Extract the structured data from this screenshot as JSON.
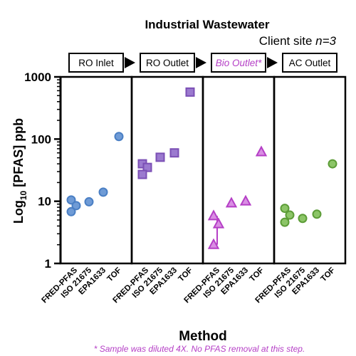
{
  "chart_data": {
    "type": "scatter",
    "title": "Industrial Wastewater",
    "subtitle_prefix": "Client site ",
    "subtitle_n": "n=3",
    "xlabel": "Method",
    "ylabel_prefix": "Log",
    "ylabel_sub": "10",
    "ylabel_suffix": " [PFAS] ppb",
    "y_scale": "log",
    "ylim": [
      1,
      1000
    ],
    "y_ticks": [
      1,
      10,
      100,
      1000
    ],
    "y_tick_labels": [
      "1",
      "10",
      "100",
      "1000"
    ],
    "grid": false,
    "categories": [
      "FRED-PFAS",
      "ISO 21675",
      "EPA1633",
      "TOF"
    ],
    "footnote": "* Sample was diluted 4X. No PFAS removal at this step.",
    "panels": [
      {
        "name": "RO Inlet",
        "italic": false,
        "color": "#4a7fc4",
        "fill": "#6f9bd6",
        "marker": "circle",
        "points": {
          "FRED-PFAS": [
            10.5,
            8.5,
            6.8
          ],
          "ISO 21675": [
            9.8
          ],
          "EPA1633": [
            14
          ],
          "TOF": [
            110
          ]
        }
      },
      {
        "name": "RO Outlet",
        "italic": false,
        "color": "#7b4fb5",
        "fill": "#9b7acf",
        "marker": "square",
        "points": {
          "FRED-PFAS": [
            40,
            35,
            27
          ],
          "ISO 21675": [
            51
          ],
          "EPA1633": [
            60
          ],
          "TOF": [
            570
          ]
        }
      },
      {
        "name": "Bio Outlet*",
        "italic": true,
        "color": "#b53fc6",
        "fill": "#d98ee3",
        "marker": "triangle",
        "points": {
          "FRED-PFAS": [
            5.8,
            4.3,
            2.0
          ],
          "ISO 21675": [
            9.3
          ],
          "EPA1633": [
            10
          ],
          "TOF": [
            62
          ]
        }
      },
      {
        "name": "AC Outlet",
        "italic": false,
        "color": "#5c9c37",
        "fill": "#8cc567",
        "marker": "circle",
        "points": {
          "FRED-PFAS": [
            7.7,
            6.0,
            4.6
          ],
          "ISO 21675": [
            5.3
          ],
          "EPA1633": [
            6.2
          ],
          "TOF": [
            40
          ]
        }
      }
    ]
  }
}
